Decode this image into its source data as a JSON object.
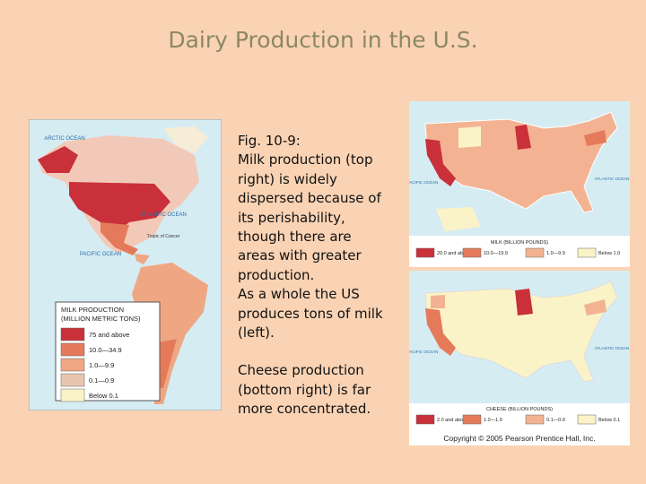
{
  "title": "Dairy Production in the U.S.",
  "caption": [
    "Fig. 10-9:",
    "Milk production (top right) is widely dispersed because of its perishability, though there are areas with greater production.",
    "As a whole the US produces tons of milk (left).",
    "Cheese production (bottom right) is far more concentrated."
  ],
  "world_map": {
    "labels": [
      "ARCTIC OCEAN",
      "ATLANTIC OCEAN",
      "PACIFIC OCEAN",
      "Tropic of Cancer"
    ],
    "legend_title": [
      "MILK PRODUCTION",
      "(MILLION METRIC TONS)"
    ],
    "legend": [
      {
        "label": "75 and above",
        "color": "#c9303a"
      },
      {
        "label": "10.0—34.9",
        "color": "#e47a5a"
      },
      {
        "label": "1.0—9.9",
        "color": "#efa783"
      },
      {
        "label": "0.1—0.9",
        "color": "#e8c6ae"
      },
      {
        "label": "Below 0.1",
        "color": "#fbf3c8"
      }
    ]
  },
  "milk_map": {
    "labels": [
      "ATLANTIC OCEAN",
      "PACIFIC OCEAN"
    ],
    "legend_title": "MILK (BILLION POUNDS)",
    "legend": [
      {
        "label": "20.0 and above",
        "color": "#c9303a"
      },
      {
        "label": "10.0—19.9",
        "color": "#e47a5a"
      },
      {
        "label": "1.0—9.9",
        "color": "#f3b393"
      },
      {
        "label": "Below 1.0",
        "color": "#fbf3c8"
      }
    ]
  },
  "cheese_map": {
    "labels": [
      "ATLANTIC OCEAN",
      "PACIFIC OCEAN"
    ],
    "legend_title": "CHEESE (BILLION POUNDS)",
    "legend": [
      {
        "label": "2.0 and above",
        "color": "#c9303a"
      },
      {
        "label": "1.0—1.9",
        "color": "#e47a5a"
      },
      {
        "label": "0.1—0.9",
        "color": "#f3b393"
      },
      {
        "label": "Below 0.1",
        "color": "#fbf3c8"
      }
    ],
    "copyright": "Copyright © 2005 Pearson Prentice Hall, Inc."
  }
}
